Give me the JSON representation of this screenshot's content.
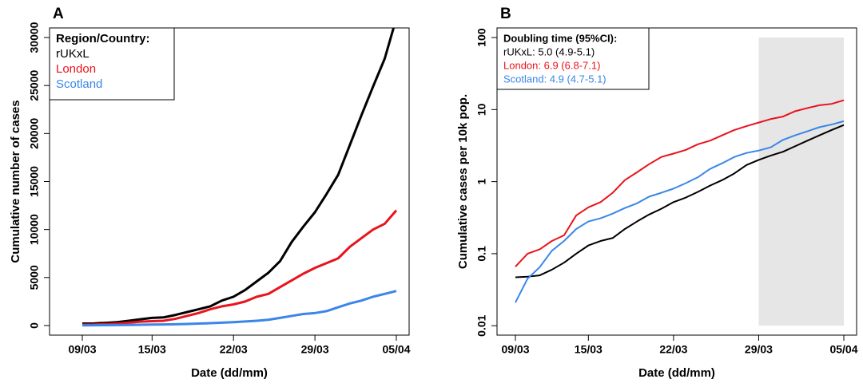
{
  "chart_data": [
    {
      "type": "line",
      "panel_label": "A",
      "x_label": "Date (dd/mm)",
      "y_label": "Cumulative number of cases",
      "categories": [
        "09/03",
        null,
        null,
        null,
        null,
        null,
        "15/03",
        null,
        null,
        null,
        null,
        null,
        null,
        "22/03",
        null,
        null,
        null,
        null,
        null,
        null,
        "29/03",
        null,
        null,
        null,
        null,
        null,
        null,
        "05/04"
      ],
      "ylim": [
        -1000,
        31000
      ],
      "yticks": [
        0,
        5000,
        10000,
        15000,
        20000,
        25000,
        30000
      ],
      "legend_title": "Region/Country:",
      "legend": "top-left",
      "series": [
        {
          "name": "rUKxL",
          "color": "#000000",
          "values": [
            200,
            220,
            280,
            350,
            500,
            650,
            800,
            850,
            1100,
            1400,
            1700,
            2000,
            2600,
            3000,
            3700,
            4600,
            5500,
            6700,
            8700,
            10300,
            11800,
            13700,
            15700,
            18800,
            21900,
            24900,
            27800,
            32000
          ]
        },
        {
          "name": "London",
          "color": "#e8141c",
          "values": [
            80,
            100,
            150,
            200,
            300,
            400,
            450,
            500,
            700,
            1000,
            1300,
            1700,
            2000,
            2200,
            2500,
            3000,
            3300,
            4000,
            4700,
            5400,
            6000,
            6500,
            7000,
            8200,
            9100,
            10000,
            10600,
            12000
          ]
        },
        {
          "name": "Scotland",
          "color": "#3a86e8",
          "values": [
            20,
            30,
            40,
            50,
            60,
            80,
            100,
            110,
            130,
            160,
            200,
            250,
            300,
            350,
            420,
            500,
            600,
            800,
            1000,
            1200,
            1300,
            1500,
            1900,
            2300,
            2600,
            3000,
            3300,
            3600
          ]
        }
      ]
    },
    {
      "type": "line",
      "panel_label": "B",
      "x_label": "Date (dd/mm)",
      "y_label": "Cumulative cases per 10k pop.",
      "categories": [
        "09/03",
        null,
        null,
        null,
        null,
        null,
        "15/03",
        null,
        null,
        null,
        null,
        null,
        null,
        "22/03",
        null,
        null,
        null,
        null,
        null,
        null,
        "29/03",
        null,
        null,
        null,
        null,
        null,
        null,
        "05/04"
      ],
      "log_scale": true,
      "ylim": [
        0.0074,
        136
      ],
      "yticks": [
        0.01,
        0.1,
        1,
        10,
        100
      ],
      "legend_title": "Doubling time (95%CI):",
      "legend": "top-left",
      "shaded_region": {
        "start_index": 20,
        "end_index": 27,
        "ylim": [
          0.01,
          100
        ],
        "color": "#e6e6e6"
      },
      "series": [
        {
          "name": "rUKxL: 5.0 (4.9-5.1)",
          "color": "#000000",
          "values": [
            0.047,
            0.048,
            0.05,
            0.06,
            0.075,
            0.1,
            0.13,
            0.15,
            0.165,
            0.22,
            0.28,
            0.35,
            0.42,
            0.52,
            0.6,
            0.72,
            0.88,
            1.05,
            1.3,
            1.7,
            2.0,
            2.3,
            2.6,
            3.1,
            3.7,
            4.4,
            5.2,
            6.1
          ]
        },
        {
          "name": "London: 6.9 (6.8-7.1)",
          "color": "#e8141c",
          "values": [
            0.066,
            0.1,
            0.115,
            0.15,
            0.18,
            0.34,
            0.44,
            0.52,
            0.7,
            1.05,
            1.35,
            1.75,
            2.2,
            2.45,
            2.75,
            3.3,
            3.7,
            4.4,
            5.2,
            5.9,
            6.6,
            7.4,
            8.0,
            9.5,
            10.5,
            11.5,
            12.0,
            13.5
          ]
        },
        {
          "name": "Scotland: 4.9 (4.7-5.1)",
          "color": "#3a86e8",
          "values": [
            0.021,
            0.045,
            0.065,
            0.11,
            0.15,
            0.22,
            0.28,
            0.31,
            0.36,
            0.43,
            0.5,
            0.62,
            0.7,
            0.8,
            0.95,
            1.15,
            1.5,
            1.8,
            2.2,
            2.5,
            2.7,
            3.0,
            3.8,
            4.4,
            5.0,
            5.7,
            6.2,
            6.9
          ]
        }
      ]
    }
  ]
}
